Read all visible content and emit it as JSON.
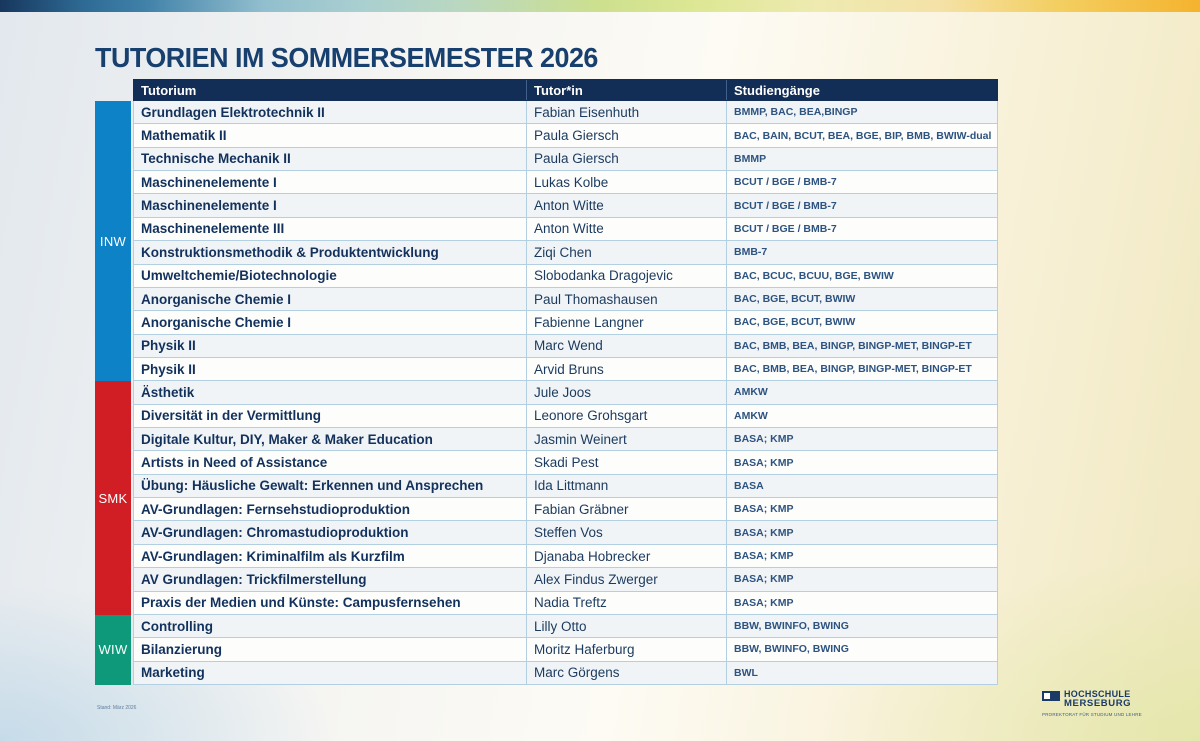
{
  "page": {
    "title": "TUTORIEN IM SOMMERSEMESTER 2026",
    "stand_note": "Stand: März 2026"
  },
  "colors": {
    "header_bg": "#122e56",
    "title_text": "#17406f",
    "row_border": "#b3cfe2",
    "inw": "#0e82c6",
    "smk": "#d11d24",
    "wiw": "#0e9a7a"
  },
  "table": {
    "columns": [
      "Tutorium",
      "Tutor*in",
      "Studiengänge"
    ],
    "sections": [
      {
        "label": "INW",
        "color": "#0e82c6",
        "rows": [
          {
            "tutorium": "Grundlagen Elektrotechnik II",
            "tutor": "Fabian Eisenhuth",
            "studiengaenge": "BMMP, BAC, BEA,BINGP"
          },
          {
            "tutorium": "Mathematik II",
            "tutor": "Paula Giersch",
            "studiengaenge": "BAC, BAIN, BCUT, BEA, BGE, BIP, BMB, BWIW-dual"
          },
          {
            "tutorium": "Technische Mechanik II",
            "tutor": "Paula Giersch",
            "studiengaenge": "BMMP"
          },
          {
            "tutorium": "Maschinenelemente I",
            "tutor": "Lukas Kolbe",
            "studiengaenge": "BCUT / BGE / BMB-7"
          },
          {
            "tutorium": "Maschinenelemente I",
            "tutor": "Anton Witte",
            "studiengaenge": "BCUT / BGE / BMB-7"
          },
          {
            "tutorium": "Maschinenelemente III",
            "tutor": "Anton Witte",
            "studiengaenge": "BCUT / BGE / BMB-7"
          },
          {
            "tutorium": "Konstruktionsmethodik & Produktentwicklung",
            "tutor": "Ziqi Chen",
            "studiengaenge": "BMB-7"
          },
          {
            "tutorium": "Umweltchemie/Biotechnologie",
            "tutor": "Slobodanka Dragojevic",
            "studiengaenge": "BAC, BCUC, BCUU, BGE, BWIW"
          },
          {
            "tutorium": "Anorganische Chemie I",
            "tutor": "Paul Thomashausen",
            "studiengaenge": "BAC, BGE, BCUT, BWIW"
          },
          {
            "tutorium": "Anorganische Chemie I",
            "tutor": "Fabienne Langner",
            "studiengaenge": "BAC, BGE, BCUT, BWIW"
          },
          {
            "tutorium": "Physik II",
            "tutor": "Marc Wend",
            "studiengaenge": "BAC, BMB, BEA, BINGP, BINGP-MET, BINGP-ET"
          },
          {
            "tutorium": "Physik II",
            "tutor": "Arvid Bruns",
            "studiengaenge": "BAC, BMB, BEA, BINGP, BINGP-MET, BINGP-ET"
          }
        ]
      },
      {
        "label": "SMK",
        "color": "#d11d24",
        "rows": [
          {
            "tutorium": "Ästhetik",
            "tutor": "Jule Joos",
            "studiengaenge": "AMKW"
          },
          {
            "tutorium": "Diversität in der Vermittlung",
            "tutor": "Leonore Grohsgart",
            "studiengaenge": "AMKW"
          },
          {
            "tutorium": "Digitale Kultur, DIY, Maker & Maker Education",
            "tutor": "Jasmin Weinert",
            "studiengaenge": "BASA; KMP"
          },
          {
            "tutorium": "Artists in Need of Assistance",
            "tutor": "Skadi Pest",
            "studiengaenge": "BASA; KMP"
          },
          {
            "tutorium": "Übung: Häusliche Gewalt: Erkennen und Ansprechen",
            "tutor": "Ida Littmann",
            "studiengaenge": "BASA"
          },
          {
            "tutorium": "AV-Grundlagen: Fernsehstudioproduktion",
            "tutor": "Fabian Gräbner",
            "studiengaenge": "BASA; KMP"
          },
          {
            "tutorium": "AV-Grundlagen: Chromastudioproduktion",
            "tutor": "Steffen Vos",
            "studiengaenge": "BASA; KMP"
          },
          {
            "tutorium": "AV-Grundlagen: Kriminalfilm als Kurzfilm",
            "tutor": "Djanaba Hobrecker",
            "studiengaenge": "BASA; KMP"
          },
          {
            "tutorium": "AV Grundlagen: Trickfilmerstellung",
            "tutor": "Alex Findus Zwerger",
            "studiengaenge": "BASA; KMP"
          },
          {
            "tutorium": "Praxis der Medien und Künste: Campusfernsehen",
            "tutor": "Nadia Treftz",
            "studiengaenge": "BASA; KMP"
          }
        ]
      },
      {
        "label": "WIW",
        "color": "#0e9a7a",
        "rows": [
          {
            "tutorium": "Controlling",
            "tutor": "Lilly Otto",
            "studiengaenge": "BBW, BWINFO, BWING"
          },
          {
            "tutorium": "Bilanzierung",
            "tutor": "Moritz Haferburg",
            "studiengaenge": "BBW, BWINFO, BWING"
          },
          {
            "tutorium": "Marketing",
            "tutor": "Marc Görgens",
            "studiengaenge": "BWL"
          }
        ]
      }
    ]
  },
  "footer": {
    "logo_line1": "HOCHSCHULE",
    "logo_line2": "MERSEBURG",
    "logo_subline": "PROREKTORAT FÜR STUDIUM UND LEHRE"
  }
}
